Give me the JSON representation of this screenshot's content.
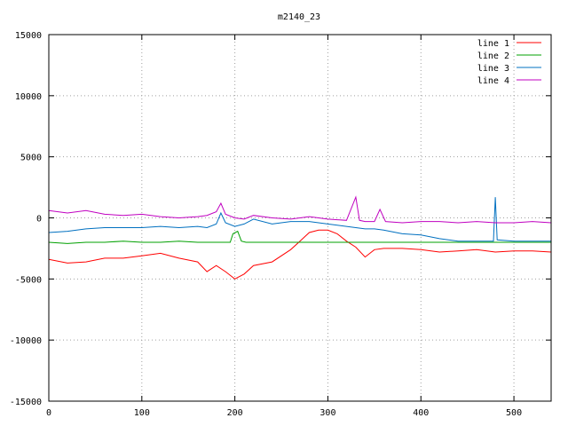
{
  "chart_data": {
    "type": "line",
    "title": "m2140_23",
    "xlabel": "",
    "ylabel": "",
    "xlim": [
      0,
      540
    ],
    "ylim": [
      -15000,
      15000
    ],
    "xticks": [
      0,
      100,
      200,
      300,
      400,
      500
    ],
    "yticks": [
      -15000,
      -10000,
      -5000,
      0,
      5000,
      10000,
      15000
    ],
    "grid": true,
    "legend_position": "top-right",
    "series": [
      {
        "name": "line 1",
        "color": "#ff0000",
        "points": [
          [
            0,
            -3400
          ],
          [
            20,
            -3700
          ],
          [
            40,
            -3600
          ],
          [
            60,
            -3300
          ],
          [
            80,
            -3300
          ],
          [
            100,
            -3100
          ],
          [
            120,
            -2900
          ],
          [
            140,
            -3300
          ],
          [
            160,
            -3600
          ],
          [
            170,
            -4400
          ],
          [
            180,
            -3900
          ],
          [
            190,
            -4400
          ],
          [
            200,
            -5000
          ],
          [
            210,
            -4600
          ],
          [
            220,
            -3900
          ],
          [
            240,
            -3600
          ],
          [
            260,
            -2600
          ],
          [
            270,
            -1900
          ],
          [
            280,
            -1200
          ],
          [
            290,
            -1000
          ],
          [
            300,
            -1000
          ],
          [
            310,
            -1300
          ],
          [
            320,
            -1900
          ],
          [
            330,
            -2400
          ],
          [
            340,
            -3200
          ],
          [
            350,
            -2600
          ],
          [
            360,
            -2500
          ],
          [
            380,
            -2500
          ],
          [
            400,
            -2600
          ],
          [
            420,
            -2800
          ],
          [
            440,
            -2700
          ],
          [
            460,
            -2600
          ],
          [
            480,
            -2800
          ],
          [
            500,
            -2700
          ],
          [
            520,
            -2700
          ],
          [
            540,
            -2800
          ]
        ]
      },
      {
        "name": "line 2",
        "color": "#00a000",
        "points": [
          [
            0,
            -2000
          ],
          [
            20,
            -2100
          ],
          [
            40,
            -2000
          ],
          [
            60,
            -2000
          ],
          [
            80,
            -1900
          ],
          [
            100,
            -2000
          ],
          [
            120,
            -2000
          ],
          [
            140,
            -1900
          ],
          [
            160,
            -2000
          ],
          [
            180,
            -2000
          ],
          [
            190,
            -2000
          ],
          [
            195,
            -2000
          ],
          [
            198,
            -1300
          ],
          [
            203,
            -1100
          ],
          [
            207,
            -1900
          ],
          [
            212,
            -2000
          ],
          [
            240,
            -2000
          ],
          [
            270,
            -2000
          ],
          [
            300,
            -2000
          ],
          [
            330,
            -2000
          ],
          [
            360,
            -2000
          ],
          [
            390,
            -2000
          ],
          [
            420,
            -2000
          ],
          [
            450,
            -2000
          ],
          [
            480,
            -2000
          ],
          [
            510,
            -2000
          ],
          [
            540,
            -2000
          ]
        ]
      },
      {
        "name": "line 3",
        "color": "#0070c0",
        "points": [
          [
            0,
            -1200
          ],
          [
            20,
            -1100
          ],
          [
            40,
            -900
          ],
          [
            60,
            -800
          ],
          [
            80,
            -800
          ],
          [
            100,
            -800
          ],
          [
            120,
            -700
          ],
          [
            140,
            -800
          ],
          [
            160,
            -700
          ],
          [
            170,
            -800
          ],
          [
            180,
            -500
          ],
          [
            185,
            400
          ],
          [
            190,
            -400
          ],
          [
            200,
            -700
          ],
          [
            210,
            -500
          ],
          [
            220,
            -100
          ],
          [
            240,
            -500
          ],
          [
            260,
            -300
          ],
          [
            280,
            -300
          ],
          [
            300,
            -500
          ],
          [
            320,
            -700
          ],
          [
            340,
            -900
          ],
          [
            350,
            -900
          ],
          [
            360,
            -1000
          ],
          [
            380,
            -1300
          ],
          [
            400,
            -1400
          ],
          [
            420,
            -1700
          ],
          [
            440,
            -1900
          ],
          [
            460,
            -1900
          ],
          [
            478,
            -1900
          ],
          [
            480,
            1700
          ],
          [
            482,
            -1800
          ],
          [
            500,
            -1900
          ],
          [
            520,
            -1900
          ],
          [
            540,
            -1900
          ]
        ]
      },
      {
        "name": "line 4",
        "color": "#c000c0",
        "points": [
          [
            0,
            600
          ],
          [
            20,
            400
          ],
          [
            40,
            600
          ],
          [
            60,
            300
          ],
          [
            80,
            200
          ],
          [
            100,
            300
          ],
          [
            120,
            100
          ],
          [
            140,
            0
          ],
          [
            160,
            100
          ],
          [
            170,
            200
          ],
          [
            180,
            500
          ],
          [
            185,
            1200
          ],
          [
            190,
            300
          ],
          [
            200,
            0
          ],
          [
            210,
            -100
          ],
          [
            220,
            200
          ],
          [
            240,
            0
          ],
          [
            260,
            -100
          ],
          [
            280,
            100
          ],
          [
            300,
            -100
          ],
          [
            320,
            -200
          ],
          [
            330,
            1700
          ],
          [
            334,
            -200
          ],
          [
            340,
            -300
          ],
          [
            350,
            -300
          ],
          [
            356,
            700
          ],
          [
            362,
            -300
          ],
          [
            380,
            -400
          ],
          [
            400,
            -300
          ],
          [
            420,
            -300
          ],
          [
            440,
            -400
          ],
          [
            460,
            -300
          ],
          [
            480,
            -400
          ],
          [
            500,
            -400
          ],
          [
            520,
            -300
          ],
          [
            540,
            -400
          ]
        ]
      }
    ]
  }
}
